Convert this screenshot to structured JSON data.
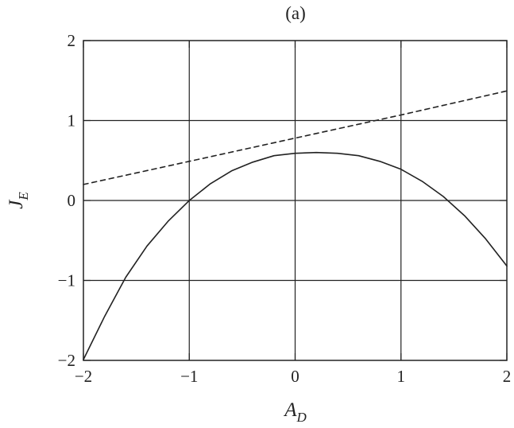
{
  "chart_data": {
    "type": "line",
    "title": "(a)",
    "xlabel": {
      "main": "A",
      "sub": "D"
    },
    "ylabel": {
      "main": "J",
      "sub": "E"
    },
    "xlim": [
      -2,
      2
    ],
    "ylim": [
      -2,
      2
    ],
    "x_ticks": [
      -2,
      -1,
      0,
      1,
      2
    ],
    "y_ticks": [
      -2,
      -1,
      0,
      1,
      2
    ],
    "x_tick_labels": [
      "−2",
      "−1",
      "0",
      "1",
      "2"
    ],
    "y_tick_labels": [
      "−2",
      "−1",
      "0",
      "1",
      "2"
    ],
    "grid": true,
    "series": [
      {
        "style": "solid",
        "color": "#222222",
        "x": [
          -2.0,
          -1.8,
          -1.6,
          -1.4,
          -1.2,
          -1.0,
          -0.8,
          -0.6,
          -0.4,
          -0.2,
          0.0,
          0.2,
          0.4,
          0.6,
          0.8,
          1.0,
          1.2,
          1.4,
          1.6,
          1.8,
          2.0
        ],
        "y": [
          -1.99,
          -1.45,
          -0.96,
          -0.57,
          -0.26,
          0.0,
          0.21,
          0.37,
          0.48,
          0.56,
          0.59,
          0.6,
          0.59,
          0.56,
          0.49,
          0.39,
          0.24,
          0.05,
          -0.19,
          -0.48,
          -0.82
        ]
      },
      {
        "style": "dashed",
        "color": "#222222",
        "x": [
          -2.0,
          -1.0,
          0.0,
          1.0,
          2.0
        ],
        "y": [
          0.2,
          0.49,
          0.78,
          1.07,
          1.37
        ]
      }
    ]
  }
}
